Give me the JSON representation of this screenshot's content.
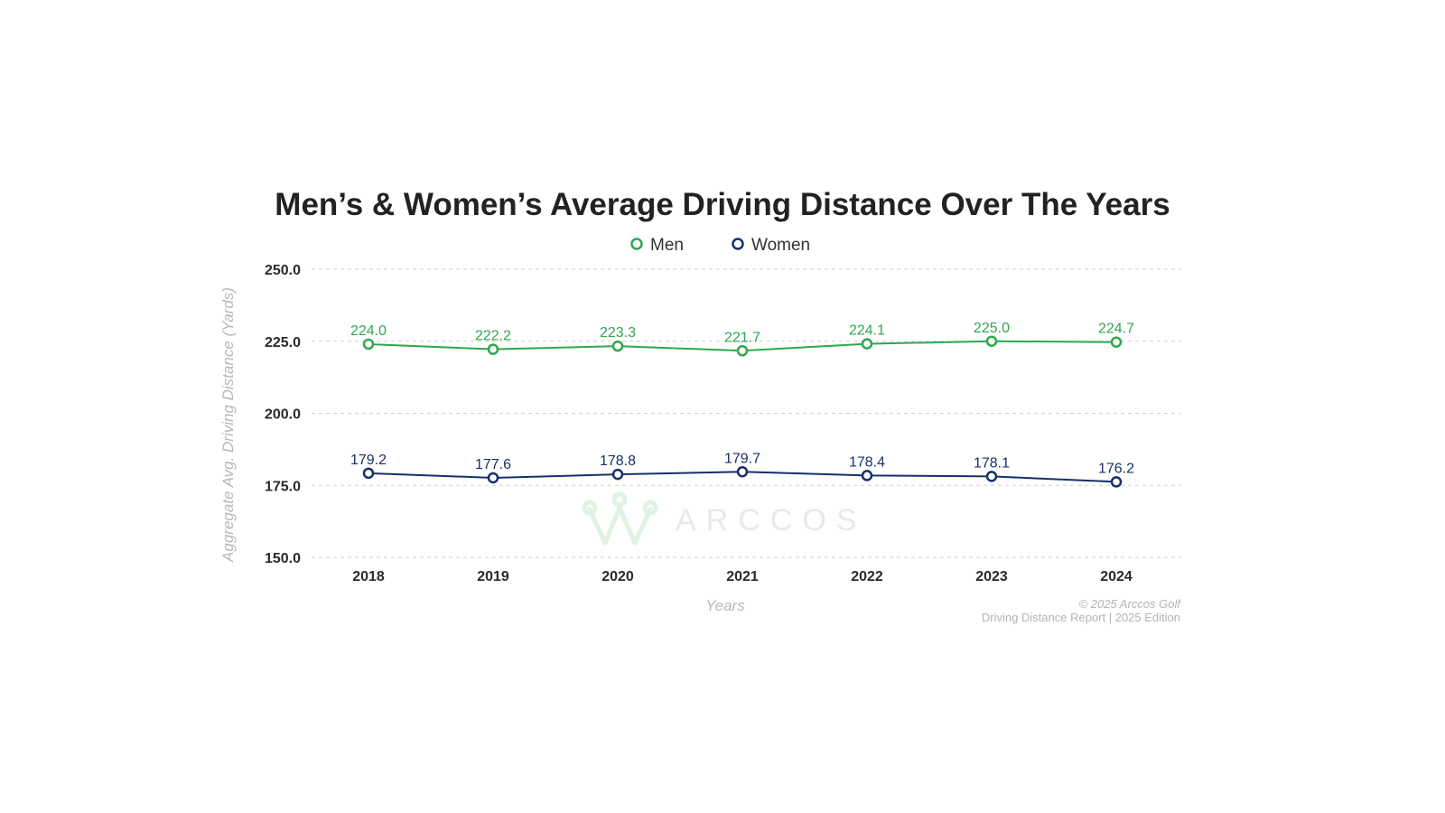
{
  "chart_data": {
    "type": "line",
    "title": "Men’s & Women’s Average Driving Distance Over The Years",
    "xlabel": "Years",
    "ylabel": "Aggregate Avg. Driving Distance (Yards)",
    "categories": [
      "2018",
      "2019",
      "2020",
      "2021",
      "2022",
      "2023",
      "2024"
    ],
    "ylim": [
      150,
      250
    ],
    "yticks": [
      250,
      225,
      200,
      175,
      150
    ],
    "ytick_labels": [
      "250.0",
      "225.0",
      "200.0",
      "175.0",
      "150.0"
    ],
    "grid": true,
    "legend_position": "top-center",
    "series": [
      {
        "name": "Men",
        "color": "#2ea84f",
        "values": [
          224.0,
          222.2,
          223.3,
          221.7,
          224.1,
          225.0,
          224.7
        ],
        "labels": [
          "224.0",
          "222.2",
          "223.3",
          "221.7",
          "224.1",
          "225.0",
          "224.7"
        ]
      },
      {
        "name": "Women",
        "color": "#16306b",
        "values": [
          179.2,
          177.6,
          178.8,
          179.7,
          178.4,
          178.1,
          176.2
        ],
        "labels": [
          "179.2",
          "177.6",
          "178.8",
          "179.7",
          "178.4",
          "178.1",
          "176.2"
        ]
      }
    ]
  },
  "watermark": {
    "text": "ARCCOS",
    "icon": "crown-icon",
    "color": "#dff2e4"
  },
  "footer": {
    "copyright": "© 2025 Arccos Golf",
    "report": "Driving Distance Report | 2025 Edition"
  }
}
